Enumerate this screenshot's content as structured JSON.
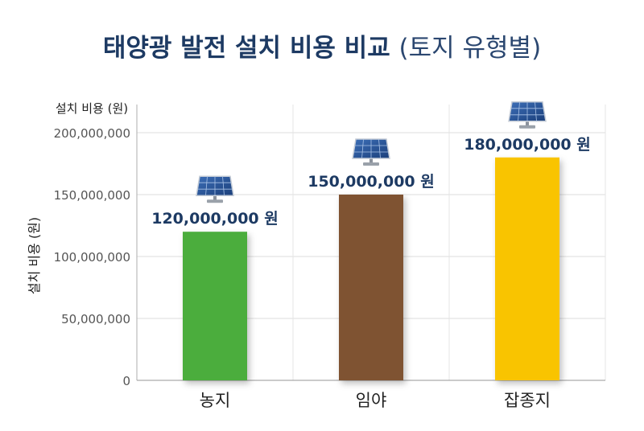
{
  "chart_data": {
    "type": "bar",
    "title": "태양광 발전 설치 비용 비교",
    "subtitle": "(토지 유형별)",
    "ylabel": "설치 비용 (원)",
    "ylabel_top": "설치 비용 (원)",
    "ylim": [
      0,
      200000000
    ],
    "yticks": [
      "0",
      "50,000,000",
      "100,000,000",
      "150,000,000",
      "200,000,000"
    ],
    "ytick_values": [
      0,
      50000000,
      100000000,
      150000000,
      200000000
    ],
    "categories": [
      "농지",
      "임야",
      "잡종지"
    ],
    "values": [
      120000000,
      150000000,
      180000000
    ],
    "value_labels": [
      "120,000,000 원",
      "150,000,000 원",
      "180,000,000 원"
    ],
    "colors": [
      "#4cad3e",
      "#7f5330",
      "#f9c400"
    ],
    "grid": true,
    "legend": "none",
    "icon": "solar-panel-icon"
  }
}
